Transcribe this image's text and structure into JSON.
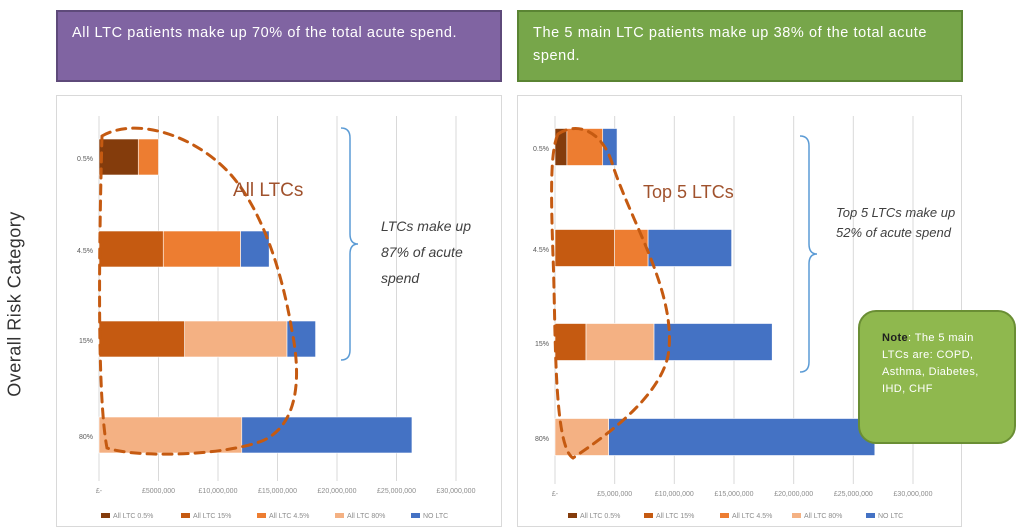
{
  "banner_left": {
    "text": "All LTC patients make up 70% of the total acute spend."
  },
  "banner_right": {
    "text": "The 5 main LTC patients make up 38% of the total acute spend."
  },
  "y_axis_title": "Overall Risk Category",
  "note": {
    "label": "Note",
    "text": ": The 5 main LTCs are: COPD, Asthma, Diabetes, IHD, CHF"
  },
  "colors": {
    "c1": "#843c0c",
    "c2": "#c55a11",
    "c3": "#ed7d31",
    "c4": "#f4b183",
    "c5": "#4472c4",
    "dash": "#c55a11",
    "brace": "#5b9bd5",
    "grid": "#d9d9d9"
  },
  "chart_data": [
    {
      "type": "bar",
      "orientation": "horizontal",
      "stacked": true,
      "categories": [
        "0.5%",
        "4.5%",
        "15%",
        "80%"
      ],
      "xlim": [
        0,
        30000000
      ],
      "x_ticks": [
        "£-",
        "£5,000,000",
        "£10,000,000",
        "£15,000,000",
        "£20,000,000",
        "£25,000,000",
        "£30,000,000"
      ],
      "x_tick_labels": [
        "£-",
        "£5000,000",
        "£10,000,000",
        "£15,000,000",
        "£20,000,000",
        "£25,000,000",
        "£30,000,000"
      ],
      "series": [
        {
          "name": "All LTC 0.5%",
          "color": "#843c0c",
          "values": [
            3300000,
            0,
            0,
            0
          ]
        },
        {
          "name": "All LTC 15%",
          "color": "#c55a11",
          "values": [
            0,
            5400000,
            7200000,
            0
          ]
        },
        {
          "name": "All LTC 4.5%",
          "color": "#ed7d31",
          "values": [
            1700000,
            6500000,
            0,
            0
          ]
        },
        {
          "name": "All LTC 80%",
          "color": "#f4b183",
          "values": [
            0,
            0,
            8600000,
            12000000
          ]
        },
        {
          "name": "NO LTC",
          "color": "#4472c4",
          "values": [
            0,
            2400000,
            2400000,
            14300000
          ]
        }
      ],
      "legend_labels": [
        "All LTC 0.5%",
        "All LTC 15%",
        "All LTC 4.5%",
        "All LTC 80%",
        "NO LTC"
      ],
      "legend_position": "bottom",
      "annotation_title": "All LTCs",
      "annotation_text": [
        "LTCs make up",
        "87% of acute",
        "spend"
      ],
      "grid": true
    },
    {
      "type": "bar",
      "orientation": "horizontal",
      "stacked": true,
      "categories": [
        "0.5%",
        "4.5%",
        "15%",
        "80%"
      ],
      "xlim": [
        0,
        30000000
      ],
      "x_ticks": [
        "£-",
        "£5,000,000",
        "£10,000,000",
        "£15,000,000",
        "£20,000,000",
        "£25,000,000",
        "£30,000,000"
      ],
      "x_tick_labels": [
        "£-",
        "£5,000,000",
        "£10,000,000",
        "£15,000,000",
        "£20,000,000",
        "£25,000,000",
        "£30,000,000"
      ],
      "series": [
        {
          "name": "All LTC 0.5%",
          "color": "#843c0c",
          "values": [
            1000000,
            0,
            0,
            0
          ]
        },
        {
          "name": "All LTC 15%",
          "color": "#c55a11",
          "values": [
            0,
            5000000,
            2600000,
            0
          ]
        },
        {
          "name": "All LTC 4.5%",
          "color": "#ed7d31",
          "values": [
            3000000,
            2800000,
            0,
            0
          ]
        },
        {
          "name": "All LTC 80%",
          "color": "#f4b183",
          "values": [
            0,
            0,
            5700000,
            4500000
          ]
        },
        {
          "name": "NO LTC",
          "color": "#4472c4",
          "values": [
            1200000,
            7000000,
            9900000,
            22300000
          ]
        }
      ],
      "legend_labels": [
        "All LTC 0.5%",
        "All LTC 15%",
        "All LTC 4.5%",
        "All LTC 80%",
        "NO LTC"
      ],
      "legend_position": "bottom",
      "annotation_title": "Top 5 LTCs",
      "annotation_text": [
        "Top 5 LTCs make up",
        "52% of acute spend"
      ],
      "grid": true
    }
  ]
}
